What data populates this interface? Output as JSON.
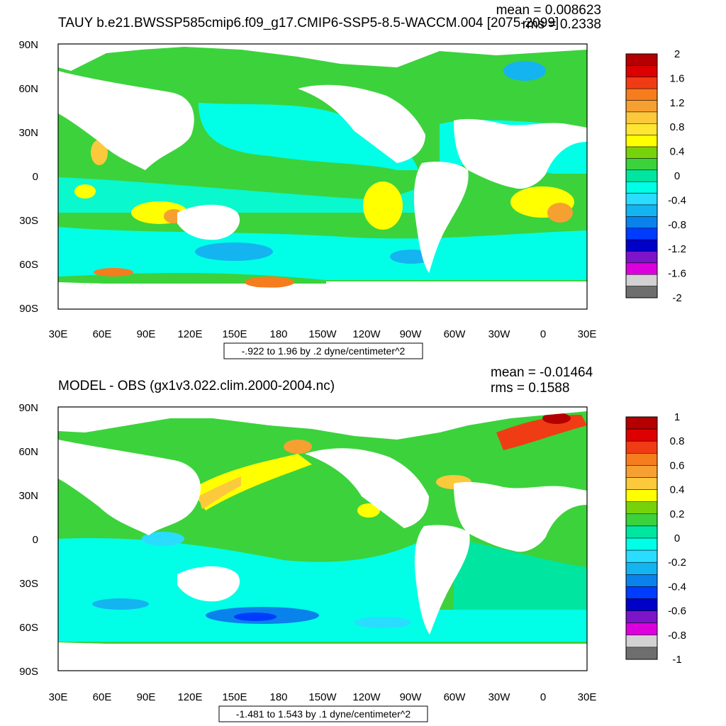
{
  "panels": [
    {
      "title": "TAUY b.e21.BWSSP585cmip6.f09_g17.CMIP6-SSP5-8.5-WACCM.004 [2075-2099]",
      "stats": {
        "mean": "mean = 0.008623",
        "rms": "rms = 0.2338"
      },
      "range_label": "-.922 to 1.96 by .2 dyne/centimeter^2",
      "colorbar_labels": [
        "2",
        "1.6",
        "1.2",
        "0.8",
        "0.4",
        "0",
        "-0.4",
        "-0.8",
        "-1.2",
        "-1.6",
        "-2"
      ],
      "colorbar_colors": [
        "#b40000",
        "#dc0000",
        "#f03c14",
        "#f57d1e",
        "#f7a032",
        "#fcc83c",
        "#ffe632",
        "#ffff00",
        "#78d20a",
        "#3cd23c",
        "#00e6a0",
        "#00ffe6",
        "#2adcff",
        "#14b4f0",
        "#0a82eb",
        "#003cff",
        "#0000c8",
        "#7d14c8",
        "#dc00dc",
        "#d2d2d2",
        "#6e6e6e"
      ]
    },
    {
      "title": "MODEL - OBS (gx1v3.022.clim.2000-2004.nc)",
      "stats": {
        "mean": "mean = -0.01464",
        "rms": "rms = 0.1588"
      },
      "range_label": "-1.481 to 1.543 by .1 dyne/centimeter^2",
      "colorbar_labels": [
        "1",
        "0.8",
        "0.6",
        "0.4",
        "0.2",
        "0",
        "-0.2",
        "-0.4",
        "-0.6",
        "-0.8",
        "-1"
      ],
      "colorbar_colors": [
        "#b40000",
        "#dc0000",
        "#f03c14",
        "#f57d1e",
        "#f7a032",
        "#fcc83c",
        "#ffff00",
        "#78d20a",
        "#3cd23c",
        "#00e6a0",
        "#00ffe6",
        "#2adcff",
        "#14b4f0",
        "#0a82eb",
        "#003cff",
        "#0000c8",
        "#7d14c8",
        "#dc00dc",
        "#d2d2d2",
        "#6e6e6e"
      ]
    }
  ],
  "axis": {
    "lat_labels": [
      "90N",
      "60N",
      "30N",
      "0",
      "30S",
      "60S",
      "90S"
    ],
    "lon_labels": [
      "30E",
      "60E",
      "90E",
      "120E",
      "150E",
      "180",
      "150W",
      "120W",
      "90W",
      "60W",
      "30W",
      "0",
      "30E"
    ]
  },
  "colors": {
    "ocean_base": "#3cd23c",
    "land": "#ffffff"
  }
}
